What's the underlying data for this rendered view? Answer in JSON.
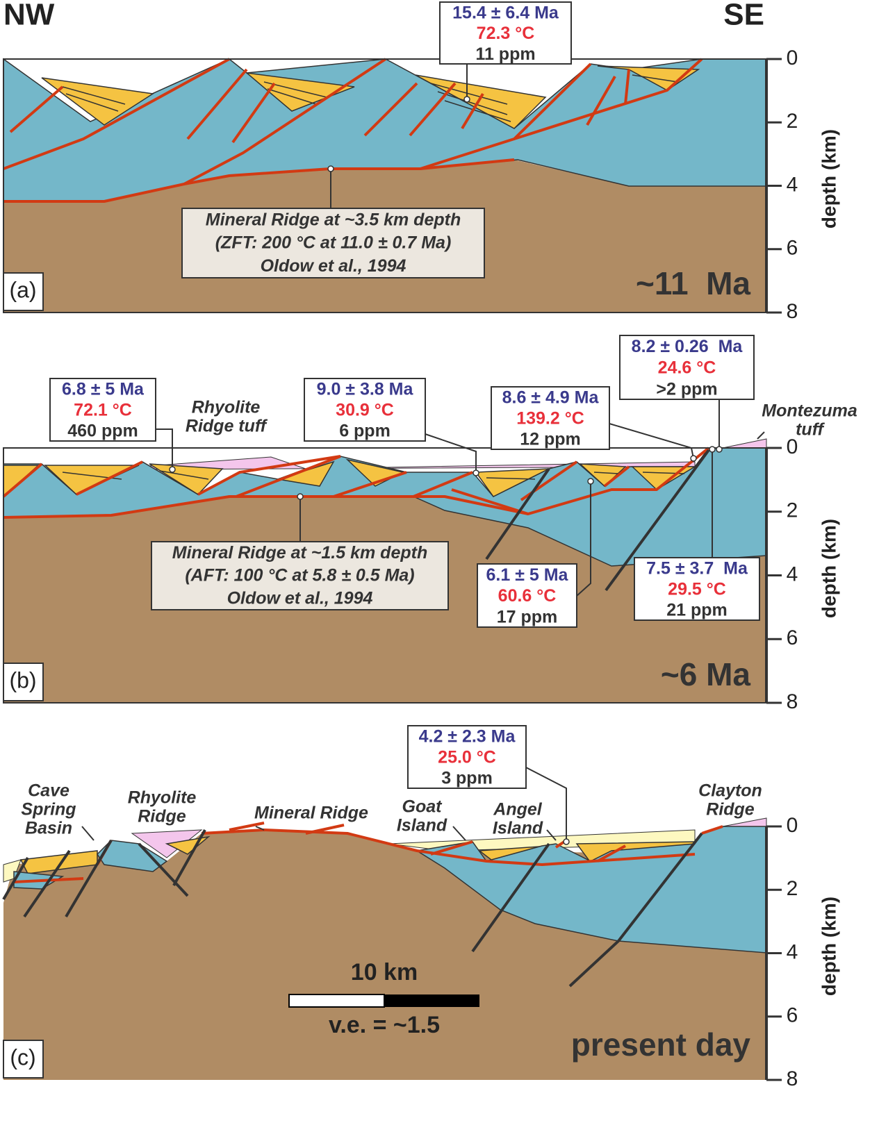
{
  "header": {
    "left": "NW",
    "right": "SE"
  },
  "panels": [
    {
      "label": "(a)",
      "age": "~11  Ma",
      "depth_axis": {
        "title": "depth (km)",
        "ticks": [
          0,
          2,
          4,
          6,
          8
        ]
      },
      "samples": [
        {
          "age": "15.4 ± 6.4 Ma",
          "temp": "72.3 °C",
          "u": "11 ppm"
        }
      ],
      "notes": [
        [
          "Mineral Ridge at ~3.5 km depth",
          "(ZFT: 200 °C at 11.0 ± 0.7 Ma)",
          "Oldow et al., 1994"
        ]
      ],
      "labels": []
    },
    {
      "label": "(b)",
      "age": "~6 Ma",
      "depth_axis": {
        "title": "depth (km)",
        "ticks": [
          0,
          2,
          4,
          6,
          8
        ]
      },
      "samples": [
        {
          "age": "6.8 ± 5 Ma",
          "temp": "72.1 °C",
          "u": "460 ppm"
        },
        {
          "age": "9.0 ± 3.8 Ma",
          "temp": "30.9 °C",
          "u": "6 ppm"
        },
        {
          "age": "8.6 ± 4.9 Ma",
          "temp": "139.2 °C",
          "u": "12 ppm"
        },
        {
          "age": "8.2 ± 0.26  Ma",
          "temp": "24.6 °C",
          "u": ">2 ppm"
        },
        {
          "age": "6.1 ± 5 Ma",
          "temp": "60.6 °C",
          "u": "17 ppm"
        },
        {
          "age": "7.5 ± 3.7  Ma",
          "temp": "29.5 °C",
          "u": "21 ppm"
        }
      ],
      "notes": [
        [
          "Mineral Ridge at ~1.5 km depth",
          "(AFT: 100 °C at 5.8 ± 0.5 Ma)",
          "Oldow et al., 1994"
        ]
      ],
      "labels": [
        [
          "Rhyolite",
          "Ridge tuff"
        ],
        [
          "Montezuma",
          "tuff"
        ]
      ]
    },
    {
      "label": "(c)",
      "age": "present day",
      "depth_axis": {
        "title": "depth (km)",
        "ticks": [
          0,
          2,
          4,
          6,
          8
        ]
      },
      "samples": [
        {
          "age": "4.2 ± 2.3 Ma",
          "temp": "25.0 °C",
          "u": "3 ppm"
        }
      ],
      "notes": [],
      "labels": [
        [
          "Cave",
          "Spring",
          "Basin"
        ],
        [
          "Rhyolite",
          "Ridge"
        ],
        [
          "Mineral Ridge"
        ],
        [
          "Goat",
          "Island"
        ],
        [
          "Angel",
          "Island"
        ],
        [
          "Clayton",
          "Ridge"
        ]
      ]
    }
  ],
  "scale_bar": {
    "label": "10 km",
    "ve": "v.e. = ~1.5"
  }
}
